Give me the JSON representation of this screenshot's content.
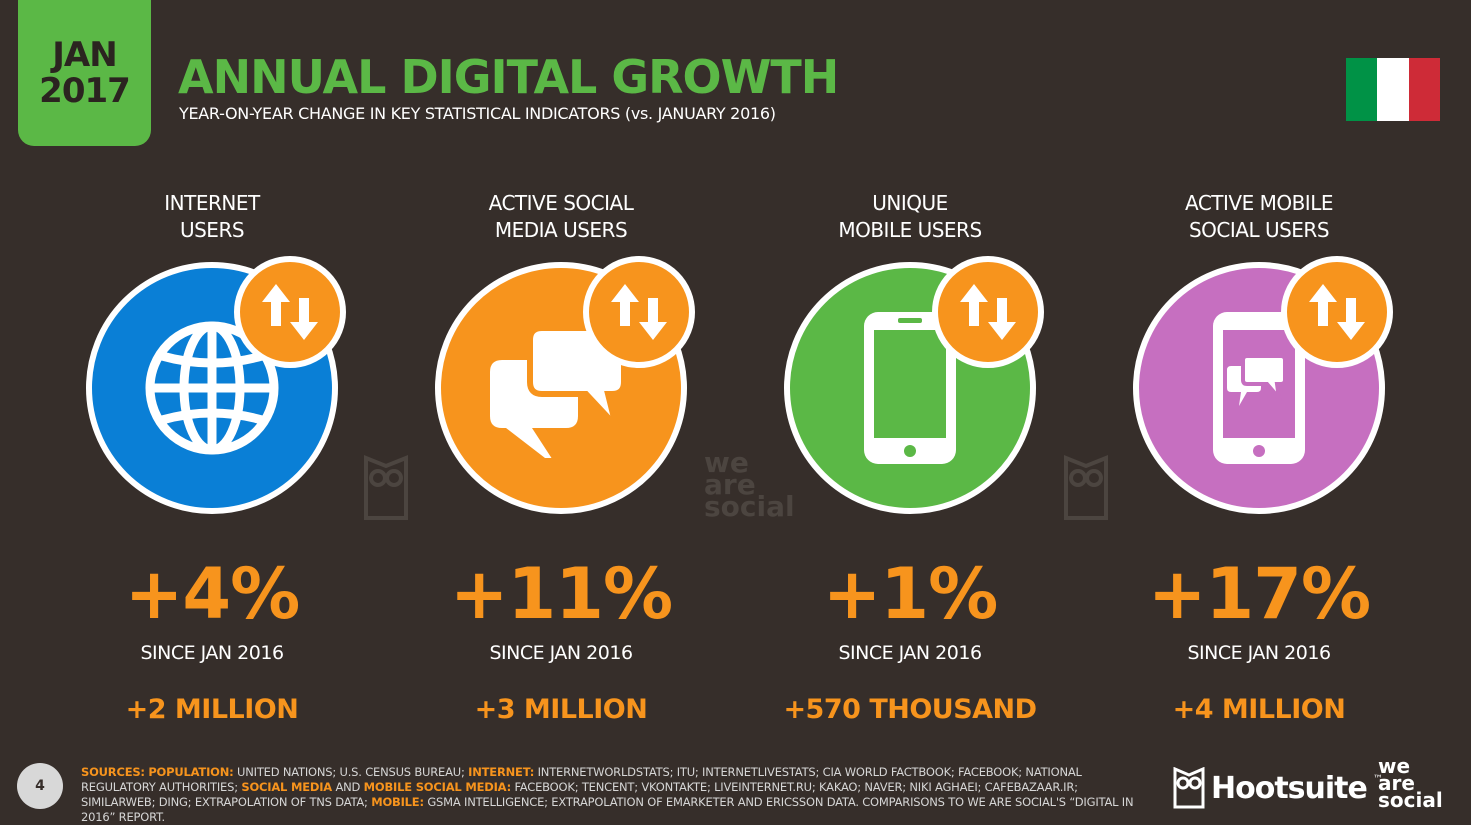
{
  "header": {
    "date_line1": "JAN",
    "date_line2": "2017",
    "title": "ANNUAL DIGITAL GROWTH",
    "subtitle": "YEAR-ON-YEAR CHANGE IN KEY STATISTICAL INDICATORS (vs. JANUARY 2016)"
  },
  "flag": {
    "colors": [
      "#009246",
      "#ffffff",
      "#ce2b37"
    ]
  },
  "columns": [
    {
      "label_line1": "INTERNET",
      "label_line2": "USERS",
      "icon": "globe-icon",
      "color": "#0a7fd6",
      "percent": "+4%",
      "since": "SINCE JAN 2016",
      "absolute": "+2 MILLION"
    },
    {
      "label_line1": "ACTIVE SOCIAL",
      "label_line2": "MEDIA USERS",
      "icon": "chat-bubbles-icon",
      "color": "#f7941d",
      "percent": "+11%",
      "since": "SINCE JAN 2016",
      "absolute": "+3 MILLION"
    },
    {
      "label_line1": "UNIQUE",
      "label_line2": "MOBILE USERS",
      "icon": "mobile-phone-icon",
      "color": "#5bb846",
      "percent": "+1%",
      "since": "SINCE JAN 2016",
      "absolute": "+570 THOUSAND"
    },
    {
      "label_line1": "ACTIVE MOBILE",
      "label_line2": "SOCIAL USERS",
      "icon": "mobile-chat-icon",
      "color": "#c66fc0",
      "percent": "+17%",
      "since": "SINCE JAN 2016",
      "absolute": "+4 MILLION"
    }
  ],
  "watermark": {
    "line1": "we",
    "line2": "are",
    "line3": "social"
  },
  "footer": {
    "page_number": "4",
    "sources_label": "SOURCES:",
    "population_label": "POPULATION:",
    "population_text": "UNITED NATIONS; U.S. CENSUS BUREAU;",
    "internet_label": "INTERNET:",
    "internet_text": "INTERNETWORLDSTATS; ITU; INTERNETLIVESTATS; CIA WORLD FACTBOOK; FACEBOOK; NATIONAL REGULATORY AUTHORITIES;",
    "social_label": "SOCIAL MEDIA",
    "and_text": "AND",
    "mobile_social_label": "MOBILE SOCIAL MEDIA:",
    "social_text": "FACEBOOK; TENCENT; VKONTAKTE; LIVEINTERNET.RU; KAKAO; NAVER; NIKI AGHAEI; CAFEBAZAAR.IR; SIMILARWEB; DING; EXTRAPOLATION OF TNS DATA;",
    "mobile_label": "MOBILE:",
    "mobile_text": "GSMA INTELLIGENCE; EXTRAPOLATION OF EMARKETER AND ERICSSON DATA. COMPARISONS TO WE ARE SOCIAL'S “DIGITAL IN 2016” REPORT.",
    "hootsuite": "Hootsuite",
    "trademark": "™",
    "was_line1": "we",
    "was_line2": "are",
    "was_line3": "social"
  }
}
